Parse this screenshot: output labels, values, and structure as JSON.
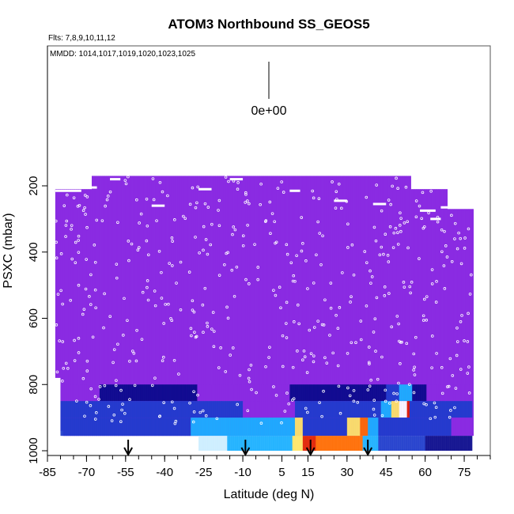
{
  "chart_data": {
    "type": "heatmap",
    "title": "ATOM3 Northbound SS_GEOS5",
    "flights_label": "Flts: 7,8,9,10,11,12",
    "dates_label": "MMDD: 1014,1017,1019,1020,1023,1025",
    "xlabel": "Latitude (deg N)",
    "ylabel": "PSXC (mbar)",
    "x_ticks": [
      -85,
      -70,
      -55,
      -40,
      -25,
      -10,
      5,
      15,
      30,
      45,
      60,
      75
    ],
    "x_tick_labels": [
      "-85",
      "-70",
      "-55",
      "-40",
      "-25",
      "-10",
      "5",
      "15",
      "30",
      "45",
      "60",
      "75"
    ],
    "y_ticks": [
      200,
      400,
      600,
      800,
      1000
    ],
    "y_tick_labels": [
      "200",
      "400",
      "600",
      "800",
      "1000"
    ],
    "ylim": [
      1000,
      0
    ],
    "colorbar_label": "0e+00",
    "arrow_latitudes": [
      -54,
      -9,
      16,
      38
    ],
    "colors": {
      "background_field": "#8a2be2",
      "dark_blue": "#0a0a8c",
      "blue": "#1e3ccc",
      "cyan": "#1ab0ff",
      "light_cyan": "#cceeff",
      "orange": "#ff6a00",
      "red": "#e11e00",
      "yellow": "#ffe566",
      "white": "#ffffff"
    }
  }
}
